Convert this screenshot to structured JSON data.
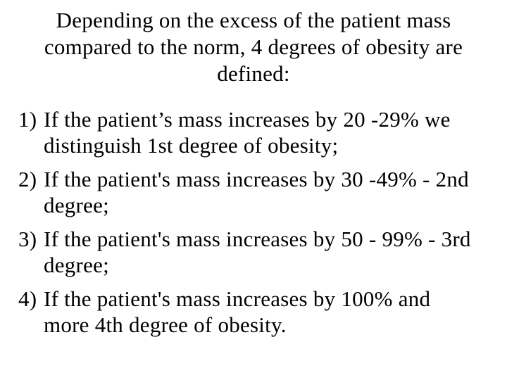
{
  "slide": {
    "background_color": "#ffffff",
    "text_color": "#000000",
    "title": {
      "lines": [
        "Depending on the excess of the patient mass",
        "compared to the norm, 4 degrees of obesity are",
        "defined:"
      ]
    },
    "list": {
      "items": [
        {
          "marker": "1)",
          "lines": [
            "If the patient’s mass increases by 20 -29% we",
            "distinguish 1st degree of obesity;"
          ]
        },
        {
          "marker": "2)",
          "lines": [
            "If the patient's mass increases by 30 -49% - 2nd",
            "degree;"
          ]
        },
        {
          "marker": "3)",
          "lines": [
            "If the patient's mass increases by 50 - 99% - 3rd",
            "degree;"
          ]
        },
        {
          "marker": "4)",
          "lines": [
            "If the patient's mass increases by 100% and",
            "more 4th degree of obesity."
          ]
        }
      ]
    }
  }
}
